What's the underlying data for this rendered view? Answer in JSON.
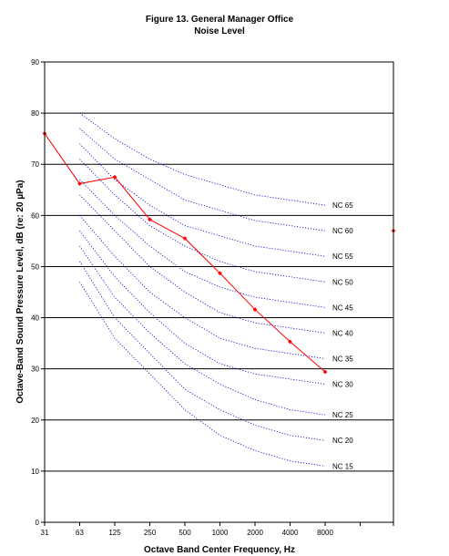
{
  "chart_data": {
    "type": "line",
    "title": "Figure 13. General Manager Office",
    "subtitle": "Noise Level",
    "xlabel": "Octave Band Center Frequency, Hz",
    "ylabel": "Octave-Band Sound Pressure Level, dB (re: 20 µPa)",
    "categories": [
      "31",
      "63",
      "125",
      "250",
      "500",
      "1000",
      "2000",
      "4000",
      "8000"
    ],
    "ylim": [
      0,
      90
    ],
    "yticks": [
      "0",
      "10",
      "20",
      "30",
      "40",
      "50",
      "60",
      "70",
      "80",
      "90"
    ],
    "grid": true,
    "measured": {
      "color": "#ff0000",
      "values": [
        76,
        66.2,
        67.5,
        59.2,
        55.5,
        48.7,
        41.6,
        35.3,
        29.4
      ],
      "extra_point": 57
    },
    "nc_curves": {
      "color": "#0000cc",
      "categories": [
        "63",
        "125",
        "250",
        "500",
        "1000",
        "2000",
        "4000",
        "8000"
      ],
      "curves": [
        {
          "label": "NC 65",
          "values": [
            80,
            75,
            71,
            68,
            66,
            64,
            63,
            62
          ]
        },
        {
          "label": "NC 60",
          "values": [
            77,
            71,
            67,
            63,
            61,
            59,
            58,
            57
          ]
        },
        {
          "label": "NC 55",
          "values": [
            74,
            67,
            62,
            58,
            56,
            54,
            53,
            52
          ]
        },
        {
          "label": "NC 50",
          "values": [
            71,
            64,
            58,
            54,
            51,
            49,
            48,
            47
          ]
        },
        {
          "label": "NC 45",
          "values": [
            67,
            60,
            54,
            49,
            46,
            44,
            43,
            42
          ]
        },
        {
          "label": "NC 40",
          "values": [
            64,
            57,
            50,
            45,
            41,
            39,
            38,
            37
          ]
        },
        {
          "label": "NC 35",
          "values": [
            60,
            52,
            45,
            40,
            36,
            34,
            33,
            32
          ]
        },
        {
          "label": "NC 30",
          "values": [
            57,
            48,
            41,
            35,
            31,
            29,
            28,
            27
          ]
        },
        {
          "label": "NC 25",
          "values": [
            54,
            44,
            37,
            31,
            27,
            24,
            22,
            21
          ]
        },
        {
          "label": "NC 20",
          "values": [
            51,
            40,
            33,
            26,
            22,
            19,
            17,
            16
          ]
        },
        {
          "label": "NC 15",
          "values": [
            47,
            36,
            29,
            22,
            17,
            14,
            12,
            11
          ]
        }
      ]
    }
  }
}
